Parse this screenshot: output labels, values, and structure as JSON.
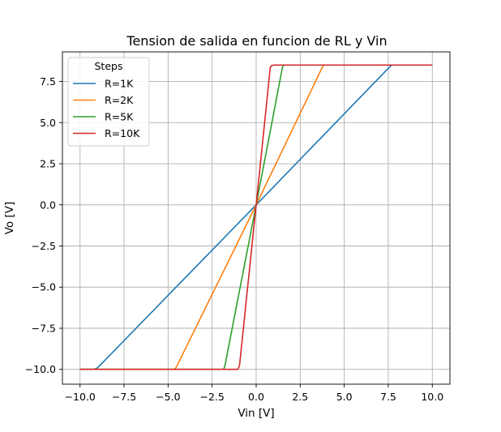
{
  "chart_data": {
    "type": "line",
    "title": "Tension de salida en funcion de RL y Vin",
    "xlabel": "Vin [V]",
    "ylabel": "Vo [V]",
    "xlim": [
      -11,
      11
    ],
    "ylim": [
      -10.9,
      9.3
    ],
    "xticks": [
      -10,
      -7.5,
      -5,
      -2.5,
      0,
      2.5,
      5,
      7.5,
      10
    ],
    "xtick_labels": [
      "−10.0",
      "−7.5",
      "−5.0",
      "−2.5",
      "0.0",
      "2.5",
      "5.0",
      "7.5",
      "10.0"
    ],
    "yticks": [
      -10,
      -7.5,
      -5,
      -2.5,
      0,
      2.5,
      5,
      7.5
    ],
    "ytick_labels": [
      "−10.0",
      "−7.5",
      "−5.0",
      "−2.5",
      "0.0",
      "2.5",
      "5.0",
      "7.5"
    ],
    "grid": true,
    "legend": {
      "title": "Steps",
      "position": "top-left"
    },
    "series": [
      {
        "name": "R=1K",
        "color": "#1f77b4",
        "x": [
          -10,
          -9.2,
          -9.0,
          0,
          7.5,
          7.7,
          10
        ],
        "y": [
          -10,
          -10,
          -9.9,
          0,
          8.3,
          8.5,
          8.5
        ]
      },
      {
        "name": "R=2K",
        "color": "#ff7f0e",
        "x": [
          -10,
          -4.65,
          -4.55,
          0,
          3.75,
          3.85,
          10
        ],
        "y": [
          -10,
          -10,
          -9.9,
          0,
          8.35,
          8.5,
          8.5
        ]
      },
      {
        "name": "R=5K",
        "color": "#2ca02c",
        "x": [
          -10,
          -1.85,
          -1.78,
          0,
          1.48,
          1.55,
          10
        ],
        "y": [
          -10,
          -10,
          -9.8,
          0,
          8.3,
          8.5,
          8.5
        ]
      },
      {
        "name": "R=10K",
        "color": "#d62728",
        "x": [
          -10,
          -1.05,
          -0.95,
          -0.9,
          0,
          0.8,
          0.85,
          1.0,
          10
        ],
        "y": [
          -10,
          -10,
          -9.8,
          -9.3,
          0,
          8.35,
          8.45,
          8.5,
          8.5
        ]
      }
    ]
  }
}
